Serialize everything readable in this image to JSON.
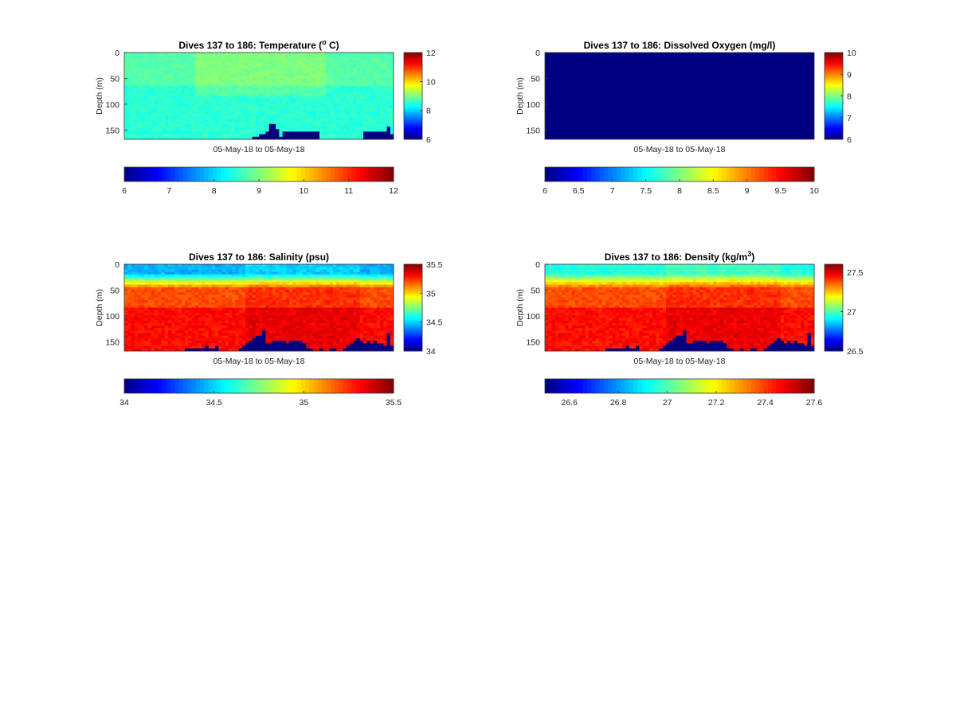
{
  "chart_data": [
    {
      "type": "heatmap",
      "title": "Dives 137 to 186: Temperature (",
      "title_sup": "o",
      "title_end": " C)",
      "xlabel": "05-May-18 to 05-May-18",
      "ylabel": "Depth (m)",
      "yticks": [
        "0",
        "50",
        "100",
        "150"
      ],
      "ylim": [
        0,
        168
      ],
      "clim": [
        6,
        12
      ],
      "side_colorbar_ticks": [
        "6",
        "8",
        "10",
        "12"
      ],
      "bottom_colorbar_ticks": [
        "6",
        "7",
        "8",
        "9",
        "10",
        "11",
        "12"
      ],
      "colormap": "jet",
      "grid": false,
      "profile_count": 80,
      "surface_value": 8.8,
      "deep_value": 8.5,
      "bottom_depth_profile": [
        168,
        168,
        168,
        168,
        168,
        168,
        168,
        168,
        168,
        168,
        168,
        168,
        168,
        168,
        168,
        168,
        168,
        166,
        166,
        166,
        168,
        168,
        168,
        168,
        166,
        168,
        168,
        168,
        168,
        168,
        168,
        168,
        168,
        168,
        168,
        168,
        168,
        168,
        163,
        160,
        158,
        158,
        150,
        138,
        138,
        148,
        160,
        152,
        152,
        152,
        152,
        152,
        150,
        150,
        150,
        150,
        150,
        150,
        168,
        168,
        168,
        168,
        168,
        168,
        168,
        168,
        168,
        168,
        168,
        166,
        166,
        150,
        150,
        152,
        152,
        150,
        152,
        152,
        142,
        156
      ]
    },
    {
      "type": "heatmap",
      "title": "Dives 137 to 186: Dissolved Oxygen (mg/l)",
      "xlabel": "05-May-18 to 05-May-18",
      "ylabel": "Depth (m)",
      "yticks": [
        "0",
        "50",
        "100",
        "150"
      ],
      "ylim": [
        0,
        168
      ],
      "clim": [
        6,
        10
      ],
      "side_colorbar_ticks": [
        "6",
        "7",
        "8",
        "9",
        "10"
      ],
      "bottom_colorbar_ticks": [
        "6",
        "6.5",
        "7",
        "7.5",
        "8",
        "8.5",
        "9",
        "9.5",
        "10"
      ],
      "colormap": "jet",
      "grid": false,
      "uniform_value": 6
    },
    {
      "type": "heatmap",
      "title": "Dives 137 to 186: Salinity (psu)",
      "xlabel": "05-May-18 to 05-May-18",
      "ylabel": "Depth (m)",
      "yticks": [
        "0",
        "50",
        "100",
        "150"
      ],
      "ylim": [
        0,
        168
      ],
      "clim": [
        34,
        35.5
      ],
      "side_colorbar_ticks": [
        "34",
        "34.5",
        "35",
        "35.5"
      ],
      "bottom_colorbar_ticks": [
        "34",
        "34.5",
        "35",
        "35.5"
      ],
      "colormap": "jet",
      "grid": false,
      "profile_count": 80,
      "surface_value": 34.45,
      "mid_value": 35.2,
      "deep_value": 35.3,
      "bottom_depth_profile": [
        168,
        168,
        168,
        168,
        168,
        168,
        168,
        168,
        168,
        168,
        168,
        168,
        168,
        168,
        168,
        168,
        168,
        166,
        162,
        160,
        160,
        162,
        160,
        160,
        158,
        160,
        160,
        158,
        168,
        168,
        168,
        168,
        168,
        168,
        160,
        156,
        152,
        148,
        140,
        138,
        134,
        128,
        150,
        150,
        146,
        144,
        148,
        146,
        150,
        148,
        146,
        144,
        148,
        152,
        160,
        162,
        168,
        164,
        160,
        168,
        168,
        162,
        160,
        168,
        166,
        160,
        158,
        152,
        148,
        142,
        148,
        152,
        146,
        150,
        148,
        150,
        152,
        158,
        130,
        156
      ]
    },
    {
      "type": "heatmap",
      "title": "Dives 137 to 186: Density (kg/m",
      "title_sup": "3",
      "title_end": ")",
      "xlabel": "05-May-18 to 05-May-18",
      "ylabel": "Depth (m)",
      "yticks": [
        "0",
        "50",
        "100",
        "150"
      ],
      "ylim": [
        0,
        168
      ],
      "clim": [
        26.5,
        27.6
      ],
      "side_colorbar_ticks": [
        "26.5",
        "27",
        "27.5"
      ],
      "bottom_colorbar_ticks": [
        "26.6",
        "26.8",
        "27",
        "27.2",
        "27.4",
        "27.6"
      ],
      "bottom_colorbar_range": [
        26.5,
        27.6
      ],
      "colormap": "jet",
      "grid": false,
      "profile_count": 80,
      "surface_value": 26.95,
      "mid_value": 27.38,
      "deep_value": 27.45,
      "bottom_depth_profile": [
        168,
        168,
        168,
        168,
        168,
        168,
        168,
        168,
        168,
        168,
        168,
        168,
        168,
        168,
        168,
        168,
        168,
        166,
        162,
        160,
        160,
        162,
        160,
        160,
        158,
        160,
        160,
        158,
        168,
        168,
        168,
        168,
        168,
        168,
        160,
        156,
        152,
        148,
        140,
        138,
        134,
        128,
        150,
        150,
        146,
        144,
        148,
        146,
        150,
        148,
        146,
        144,
        148,
        152,
        160,
        162,
        168,
        164,
        160,
        168,
        168,
        162,
        160,
        168,
        166,
        160,
        158,
        152,
        148,
        142,
        148,
        152,
        146,
        150,
        148,
        150,
        152,
        158,
        130,
        156
      ]
    }
  ]
}
